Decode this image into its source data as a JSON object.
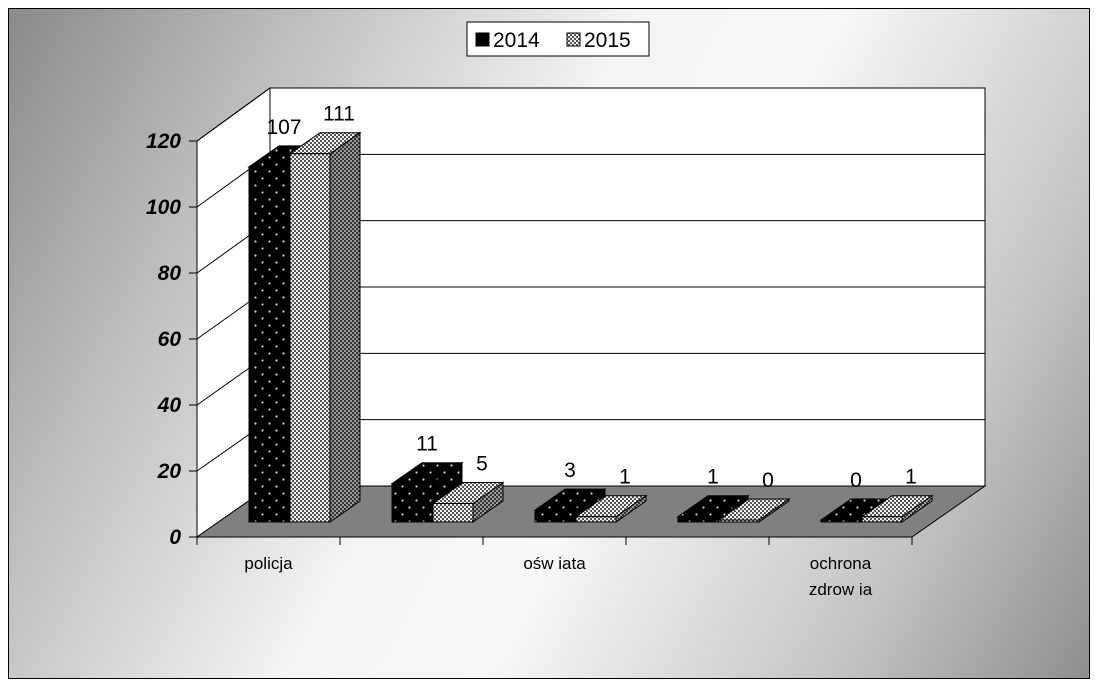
{
  "chart_data": {
    "type": "bar",
    "categories": [
      "policja",
      "",
      "oświata",
      "",
      "ochrona zdrowia"
    ],
    "category_lines": [
      [
        "policja"
      ],
      [],
      [
        "ośw iata"
      ],
      [],
      [
        "ochrona",
        "zdrow ia"
      ]
    ],
    "series": [
      {
        "name": "2014",
        "values": [
          107,
          11,
          3,
          1,
          0
        ],
        "pattern": "dots",
        "color": "#000000"
      },
      {
        "name": "2015",
        "values": [
          111,
          5,
          1,
          0,
          1
        ],
        "pattern": "checker",
        "color": "#9a9a9a"
      }
    ],
    "ylim": [
      0,
      120
    ],
    "yticks": [
      0,
      20,
      40,
      60,
      80,
      100,
      120
    ],
    "grid": true,
    "legend": "top-center",
    "three_d": true
  }
}
